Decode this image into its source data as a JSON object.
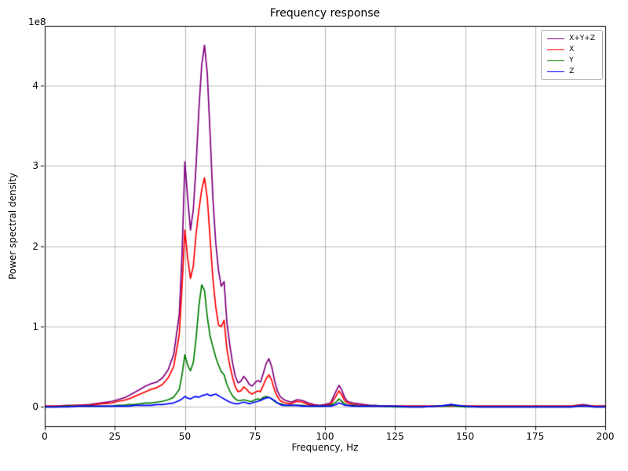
{
  "chart_data": {
    "type": "line",
    "title": "Frequency response",
    "xlabel": "Frequency, Hz",
    "ylabel": "Power spectral density",
    "y_offset_text": "1e8",
    "values_unit": "1e8",
    "xlim": [
      0,
      200
    ],
    "ylim": [
      -0.24,
      4.74
    ],
    "xticks": [
      0,
      25,
      50,
      75,
      100,
      125,
      150,
      175,
      200
    ],
    "yticks": [
      0,
      1,
      2,
      3,
      4
    ],
    "grid": true,
    "legend": {
      "position": "upper right",
      "entries": [
        "X+Y+Z",
        "X",
        "Y",
        "Z"
      ]
    },
    "colors": {
      "background": "#ffffff",
      "grid": "#b8b8b8",
      "frame": "#000000",
      "text": "#000000"
    },
    "x": [
      0,
      4,
      8,
      12,
      16,
      20,
      24,
      26,
      28,
      30,
      32,
      34,
      36,
      38,
      40,
      42,
      44,
      46,
      48,
      49,
      50,
      51,
      52,
      53,
      54,
      55,
      56,
      57,
      58,
      59,
      60,
      61,
      62,
      63,
      64,
      65,
      66,
      67,
      68,
      69,
      70,
      71,
      72,
      73,
      74,
      75,
      76,
      77,
      78,
      79,
      80,
      81,
      82,
      83,
      84,
      85,
      86,
      88,
      90,
      92,
      94,
      96,
      98,
      100,
      102,
      104,
      105,
      106,
      107,
      108,
      110,
      112,
      114,
      116,
      118,
      120,
      125,
      130,
      135,
      140,
      143,
      145,
      147,
      150,
      155,
      160,
      165,
      170,
      175,
      180,
      185,
      188,
      190,
      192,
      194,
      196,
      200
    ],
    "series": [
      {
        "name": "X+Y+Z",
        "color": "#800080",
        "values": [
          0.01,
          0.01,
          0.02,
          0.02,
          0.03,
          0.05,
          0.07,
          0.09,
          0.11,
          0.14,
          0.18,
          0.22,
          0.26,
          0.29,
          0.31,
          0.36,
          0.46,
          0.65,
          1.15,
          1.9,
          3.05,
          2.6,
          2.2,
          2.45,
          3.0,
          3.7,
          4.25,
          4.5,
          4.15,
          3.4,
          2.6,
          2.05,
          1.7,
          1.5,
          1.56,
          1.05,
          0.78,
          0.55,
          0.38,
          0.3,
          0.32,
          0.38,
          0.34,
          0.28,
          0.26,
          0.3,
          0.33,
          0.31,
          0.42,
          0.54,
          0.6,
          0.5,
          0.33,
          0.2,
          0.13,
          0.1,
          0.08,
          0.06,
          0.09,
          0.08,
          0.05,
          0.03,
          0.02,
          0.03,
          0.05,
          0.2,
          0.27,
          0.21,
          0.12,
          0.07,
          0.05,
          0.04,
          0.03,
          0.02,
          0.02,
          0.01,
          0.01,
          0.01,
          0.01,
          0.01,
          0.02,
          0.03,
          0.02,
          0.01,
          0.01,
          0.01,
          0.01,
          0.01,
          0.01,
          0.01,
          0.01,
          0.01,
          0.02,
          0.03,
          0.02,
          0.01,
          0.01
        ]
      },
      {
        "name": "X",
        "color": "#ff0000",
        "values": [
          0.01,
          0.01,
          0.01,
          0.02,
          0.02,
          0.04,
          0.05,
          0.07,
          0.08,
          0.1,
          0.13,
          0.16,
          0.19,
          0.22,
          0.24,
          0.28,
          0.36,
          0.5,
          0.9,
          1.5,
          2.2,
          1.85,
          1.6,
          1.75,
          2.15,
          2.45,
          2.7,
          2.85,
          2.6,
          2.1,
          1.6,
          1.25,
          1.02,
          1.0,
          1.08,
          0.72,
          0.52,
          0.37,
          0.25,
          0.19,
          0.2,
          0.25,
          0.22,
          0.18,
          0.16,
          0.18,
          0.2,
          0.19,
          0.27,
          0.35,
          0.4,
          0.33,
          0.21,
          0.13,
          0.08,
          0.06,
          0.05,
          0.04,
          0.07,
          0.06,
          0.03,
          0.02,
          0.01,
          0.02,
          0.03,
          0.14,
          0.2,
          0.15,
          0.08,
          0.05,
          0.03,
          0.02,
          0.02,
          0.01,
          0.01,
          0.01,
          0.01,
          0.01,
          0.01,
          0.01,
          0.01,
          0.01,
          0.01,
          0.01,
          0.01,
          0.01,
          0.01,
          0.01,
          0.01,
          0.01,
          0.01,
          0.01,
          0.02,
          0.02,
          0.01,
          0.01,
          0.01
        ]
      },
      {
        "name": "Y",
        "color": "#008000",
        "values": [
          0.0,
          0.0,
          0.01,
          0.01,
          0.01,
          0.01,
          0.01,
          0.02,
          0.02,
          0.03,
          0.03,
          0.04,
          0.05,
          0.05,
          0.06,
          0.07,
          0.09,
          0.12,
          0.22,
          0.4,
          0.65,
          0.52,
          0.45,
          0.55,
          0.85,
          1.25,
          1.52,
          1.45,
          1.12,
          0.88,
          0.75,
          0.62,
          0.52,
          0.44,
          0.4,
          0.28,
          0.2,
          0.14,
          0.1,
          0.08,
          0.08,
          0.09,
          0.08,
          0.07,
          0.07,
          0.09,
          0.1,
          0.09,
          0.12,
          0.13,
          0.12,
          0.1,
          0.07,
          0.05,
          0.04,
          0.03,
          0.02,
          0.02,
          0.02,
          0.02,
          0.01,
          0.01,
          0.01,
          0.01,
          0.02,
          0.06,
          0.1,
          0.07,
          0.04,
          0.02,
          0.02,
          0.01,
          0.01,
          0.01,
          0.01,
          0.01,
          0.0,
          0.0,
          0.0,
          0.01,
          0.01,
          0.02,
          0.01,
          0.0,
          0.0,
          0.0,
          0.0,
          0.0,
          0.0,
          0.0,
          0.0,
          0.0,
          0.01,
          0.01,
          0.01,
          0.0,
          0.0
        ]
      },
      {
        "name": "Z",
        "color": "#0000ff",
        "values": [
          0.0,
          0.0,
          0.0,
          0.01,
          0.01,
          0.01,
          0.01,
          0.01,
          0.01,
          0.01,
          0.02,
          0.02,
          0.02,
          0.02,
          0.03,
          0.03,
          0.04,
          0.05,
          0.08,
          0.1,
          0.13,
          0.11,
          0.1,
          0.12,
          0.13,
          0.12,
          0.14,
          0.15,
          0.16,
          0.14,
          0.15,
          0.16,
          0.14,
          0.12,
          0.1,
          0.08,
          0.06,
          0.05,
          0.04,
          0.04,
          0.05,
          0.06,
          0.05,
          0.04,
          0.05,
          0.06,
          0.07,
          0.08,
          0.1,
          0.11,
          0.12,
          0.1,
          0.08,
          0.05,
          0.03,
          0.02,
          0.02,
          0.02,
          0.02,
          0.01,
          0.01,
          0.01,
          0.01,
          0.01,
          0.01,
          0.03,
          0.05,
          0.04,
          0.02,
          0.02,
          0.01,
          0.01,
          0.01,
          0.01,
          0.01,
          0.01,
          0.01,
          0.0,
          0.0,
          0.01,
          0.02,
          0.03,
          0.02,
          0.01,
          0.0,
          0.0,
          0.0,
          0.0,
          0.0,
          0.0,
          0.0,
          0.0,
          0.01,
          0.01,
          0.01,
          0.0,
          0.0
        ]
      }
    ]
  }
}
